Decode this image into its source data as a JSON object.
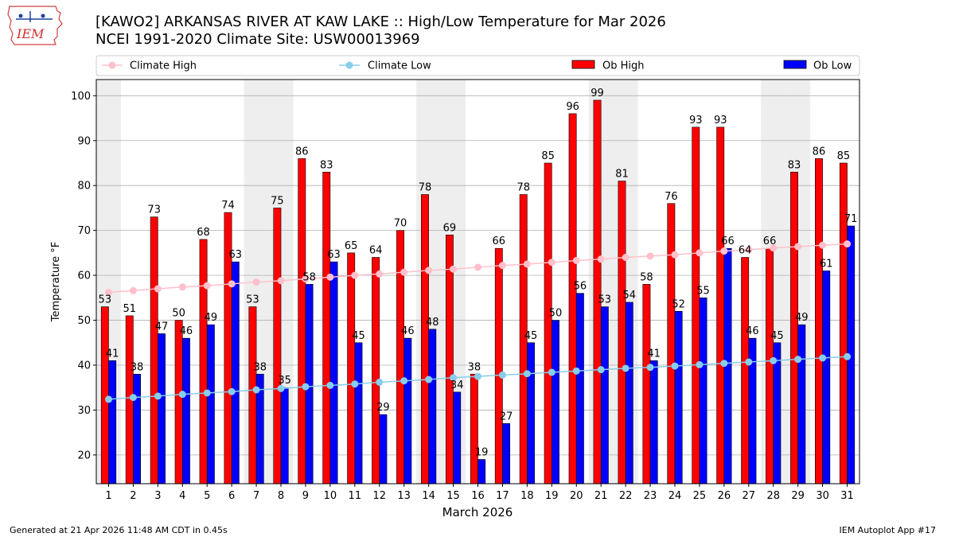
{
  "header": {
    "title_line1": "[KAWO2] ARKANSAS RIVER  AT KAW LAKE :: High/Low Temperature for Mar 2026",
    "title_line2": "NCEI 1991-2020 Climate Site: USW00013969"
  },
  "logo": {
    "text": "IEM"
  },
  "footer": {
    "generated": "Generated at 21 Apr 2026 11:48 AM CDT in 0.45s",
    "app": "IEM Autoplot App #17"
  },
  "legend": {
    "climate_high": "Climate High",
    "climate_low": "Climate Low",
    "ob_high": "Ob High",
    "ob_low": "Ob Low"
  },
  "colors": {
    "ob_high": "#ff0000",
    "ob_low": "#0000ff",
    "climate_high": "#ffc0cb",
    "climate_low": "#87ceeb",
    "weekend_shade": "#eeeeee",
    "grid": "#b0b0b0"
  },
  "chart_data": {
    "type": "bar",
    "title": "[KAWO2] ARKANSAS RIVER  AT KAW LAKE :: High/Low Temperature for Mar 2026",
    "xlabel": "March 2026",
    "ylabel": "Temperature °F",
    "ylim": [
      13.6,
      103.6
    ],
    "yticks": [
      20,
      30,
      40,
      50,
      60,
      70,
      80,
      90,
      100
    ],
    "grid": true,
    "legend_position": "top",
    "categories": [
      "1",
      "2",
      "3",
      "4",
      "5",
      "6",
      "7",
      "8",
      "9",
      "10",
      "11",
      "12",
      "13",
      "14",
      "15",
      "16",
      "17",
      "18",
      "19",
      "20",
      "21",
      "22",
      "23",
      "24",
      "25",
      "26",
      "27",
      "28",
      "29",
      "30",
      "31"
    ],
    "shaded_days": [
      1,
      7,
      8,
      14,
      15,
      21,
      22,
      28,
      29
    ],
    "series": [
      {
        "name": "Ob High",
        "kind": "bar",
        "values": [
          53,
          51,
          73,
          50,
          68,
          74,
          53,
          75,
          86,
          83,
          65,
          64,
          70,
          78,
          69,
          38,
          66,
          78,
          85,
          96,
          99,
          81,
          58,
          76,
          93,
          93,
          64,
          66,
          83,
          86,
          85
        ]
      },
      {
        "name": "Ob Low",
        "kind": "bar",
        "values": [
          41,
          38,
          47,
          46,
          49,
          63,
          38,
          35,
          58,
          63,
          45,
          29,
          46,
          48,
          34,
          19,
          27,
          45,
          50,
          56,
          53,
          54,
          41,
          52,
          55,
          66,
          46,
          45,
          49,
          61,
          71
        ]
      },
      {
        "name": "Climate High",
        "kind": "line",
        "values": [
          56.2,
          56.6,
          57.0,
          57.4,
          57.7,
          58.1,
          58.5,
          58.8,
          59.2,
          59.6,
          60.0,
          60.3,
          60.7,
          61.1,
          61.4,
          61.8,
          62.2,
          62.5,
          62.9,
          63.3,
          63.6,
          64.0,
          64.3,
          64.6,
          65.0,
          65.4,
          65.7,
          66.1,
          66.4,
          66.7,
          67.0
        ]
      },
      {
        "name": "Climate Low",
        "kind": "line",
        "values": [
          32.4,
          32.8,
          33.1,
          33.5,
          33.8,
          34.1,
          34.5,
          34.8,
          35.2,
          35.5,
          35.8,
          36.2,
          36.5,
          36.8,
          37.2,
          37.5,
          37.8,
          38.1,
          38.4,
          38.7,
          39.0,
          39.3,
          39.5,
          39.8,
          40.1,
          40.4,
          40.7,
          41.0,
          41.3,
          41.6,
          41.9
        ]
      }
    ]
  }
}
